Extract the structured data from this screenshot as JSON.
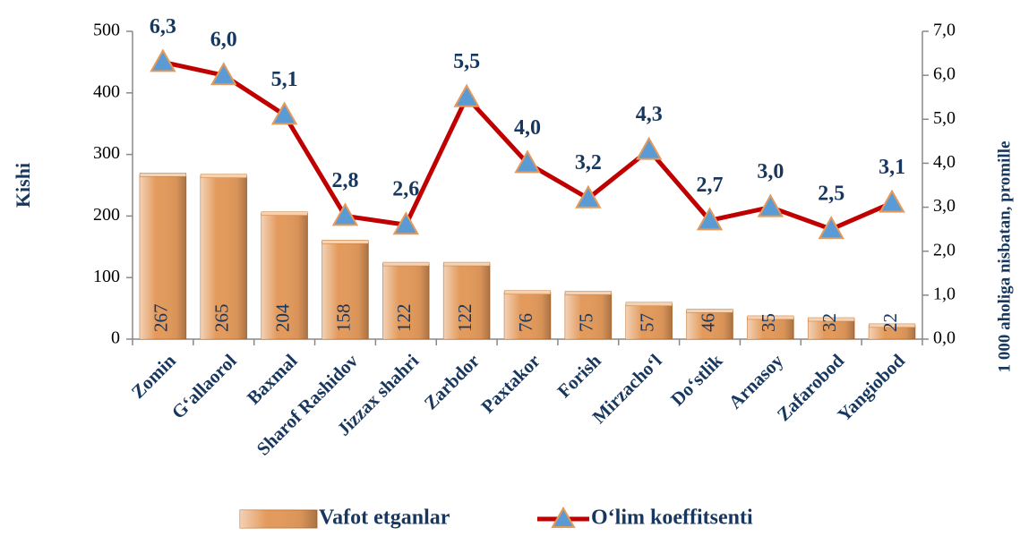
{
  "chart_data": {
    "type": "bar",
    "categories": [
      "Zomin",
      "G‘allaorol",
      "Baxmal",
      "Sharof Rashidov",
      "Jizzax shahri",
      "Zarbdor",
      "Paxtakor",
      "Forish",
      "Mirzacho‘l",
      "Do‘stlik",
      "Arnasoy",
      "Zafarobod",
      "Yangiobod"
    ],
    "series": [
      {
        "name": "Vafot etganlar",
        "type": "bar",
        "color": "#e39a5c",
        "values": [
          267,
          265,
          204,
          158,
          122,
          122,
          76,
          75,
          57,
          46,
          35,
          32,
          22
        ]
      },
      {
        "name": "O‘lim koeffitsenti",
        "type": "line",
        "axis": "y2",
        "color": "#c00000",
        "marker_color": "#5b9bd5",
        "values": [
          6.3,
          6.0,
          5.1,
          2.8,
          2.6,
          5.5,
          4.0,
          3.2,
          4.3,
          2.7,
          3.0,
          2.5,
          3.1
        ],
        "value_labels": [
          "6,3",
          "6,0",
          "5,1",
          "2,8",
          "2,6",
          "5,5",
          "4,0",
          "3,2",
          "4,3",
          "2,7",
          "3,0",
          "2,5",
          "3,1"
        ]
      }
    ],
    "ylabel": "Kishi",
    "y2label": "1 000 aholiga nisbatan, promille",
    "ylim": [
      0,
      500
    ],
    "yticks": [
      0,
      100,
      200,
      300,
      400,
      500
    ],
    "y2lim": [
      0,
      7
    ],
    "y2ticks": [
      {
        "value": 0,
        "label": "0,0"
      },
      {
        "value": 1,
        "label": "1,0"
      },
      {
        "value": 2,
        "label": "2,0"
      },
      {
        "value": 3,
        "label": "3,0"
      },
      {
        "value": 4,
        "label": "4,0"
      },
      {
        "value": 5,
        "label": "5,0"
      },
      {
        "value": 6,
        "label": "6,0"
      },
      {
        "value": 7,
        "label": "7,0"
      }
    ],
    "legend": "bottom"
  }
}
